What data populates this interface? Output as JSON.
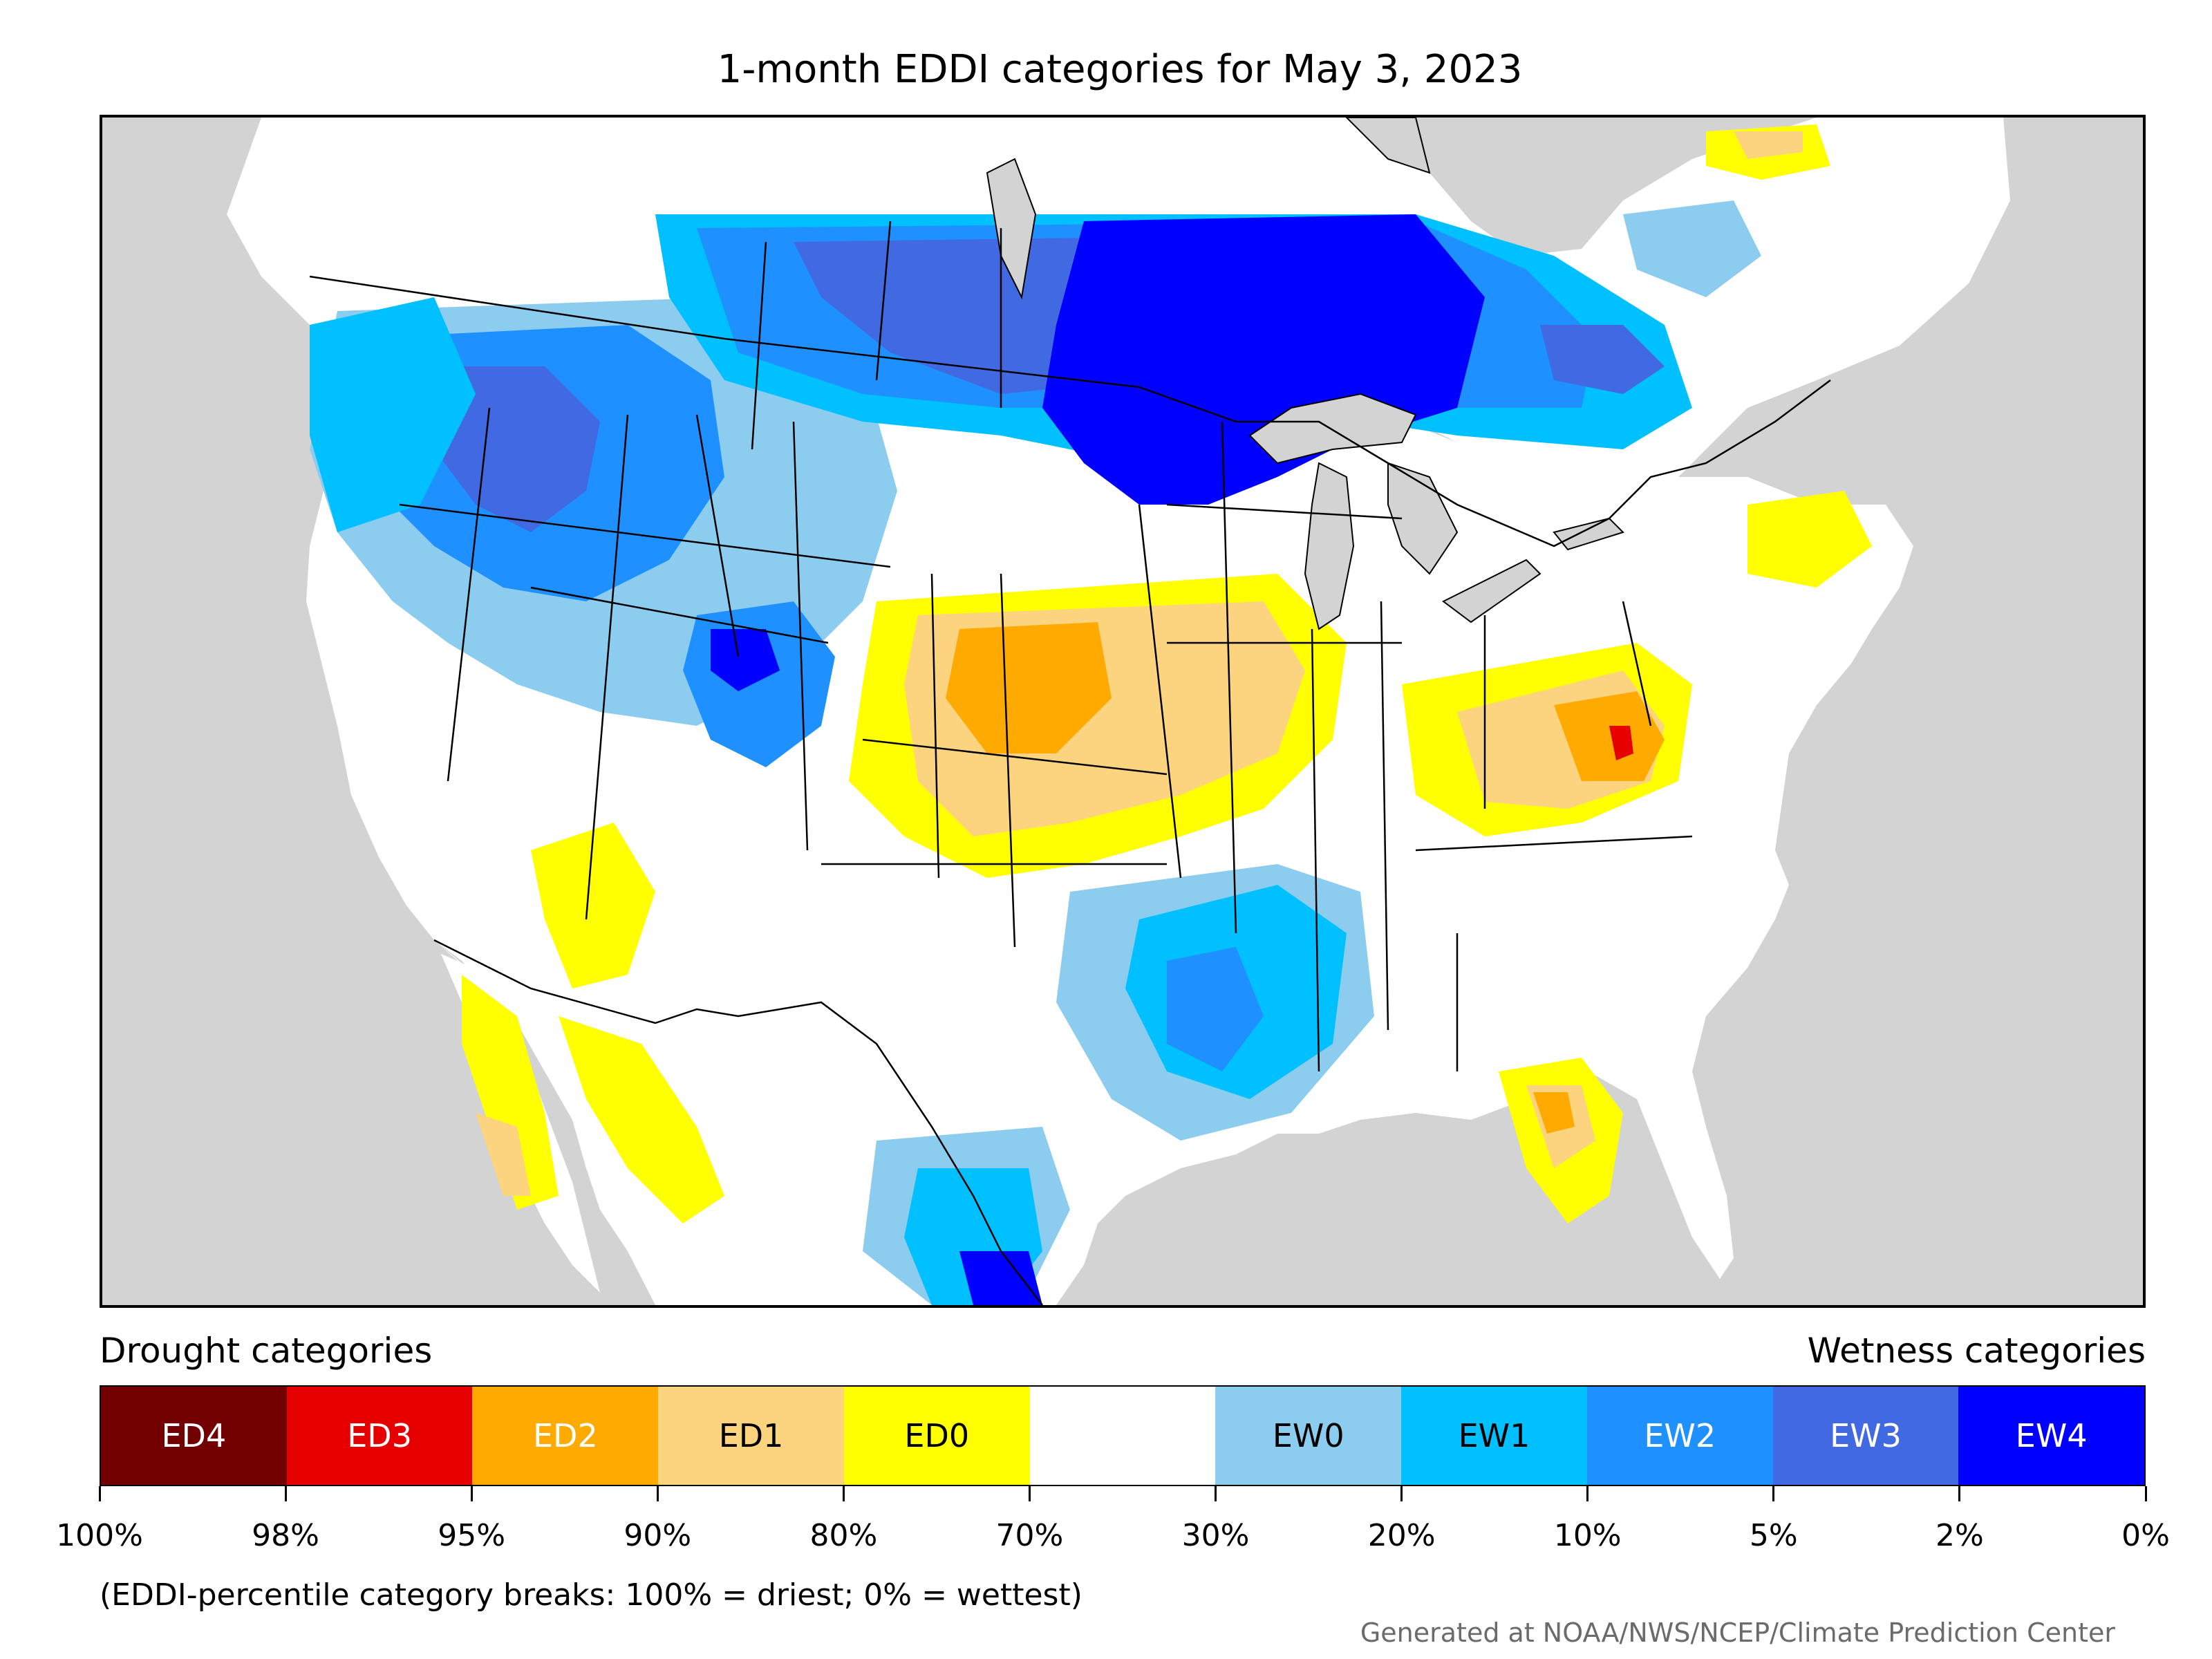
{
  "title": "1-month EDDI categories for May 3, 2023",
  "legend": {
    "drought_heading": "Drought categories",
    "wetness_heading": "Wetness categories",
    "categories": [
      {
        "label": "ED4",
        "color": "#730000",
        "text_color": "#ffffff"
      },
      {
        "label": "ED3",
        "color": "#e60000",
        "text_color": "#ffffff"
      },
      {
        "label": "ED2",
        "color": "#ffaa00",
        "text_color": "#ffffff"
      },
      {
        "label": "ED1",
        "color": "#fcd37f",
        "text_color": "#000000"
      },
      {
        "label": "ED0",
        "color": "#ffff00",
        "text_color": "#000000"
      },
      {
        "label": "",
        "color": "#ffffff",
        "text_color": "#000000"
      },
      {
        "label": "EW0",
        "color": "#8ccdef",
        "text_color": "#000000"
      },
      {
        "label": "EW1",
        "color": "#00c0ff",
        "text_color": "#000000"
      },
      {
        "label": "EW2",
        "color": "#1e90ff",
        "text_color": "#ffffff"
      },
      {
        "label": "EW3",
        "color": "#4169e1",
        "text_color": "#ffffff"
      },
      {
        "label": "EW4",
        "color": "#0000ff",
        "text_color": "#ffffff"
      }
    ],
    "tick_labels": [
      "100%",
      "98%",
      "95%",
      "90%",
      "80%",
      "70%",
      "30%",
      "20%",
      "10%",
      "5%",
      "2%",
      "0%"
    ]
  },
  "note": "(EDDI-percentile category breaks: 100% = driest; 0% = wettest)",
  "credit": "Generated at NOAA/NWS/NCEP/Climate Prediction Center",
  "map": {
    "background_color": "#d3d3d3",
    "land_color": "#ffffff",
    "boundary_color": "#000000"
  }
}
